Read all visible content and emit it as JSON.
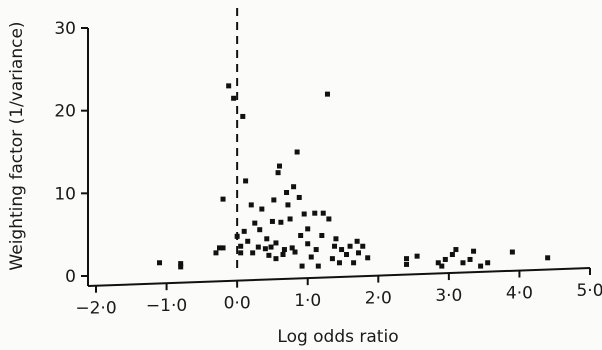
{
  "chart_data": {
    "type": "scatter",
    "xlabel": "Log odds ratio",
    "ylabel": "Weighting factor (1/variance)",
    "xlim": [
      -2.0,
      5.0
    ],
    "ylim": [
      0,
      30
    ],
    "x_ticks": [
      -2.0,
      -1.0,
      0.0,
      1.0,
      2.0,
      3.0,
      4.0,
      5.0
    ],
    "x_tick_labels": [
      "−2·0",
      "−1·0",
      "0·0",
      "1·0",
      "2·0",
      "3·0",
      "4·0",
      "5·0"
    ],
    "y_ticks": [
      0,
      10,
      20,
      30
    ],
    "y_tick_labels": [
      "0",
      "10",
      "20",
      "30"
    ],
    "reference_line": {
      "x": 0.0,
      "style": "dashed"
    },
    "grid": false,
    "marker_color": "#111111",
    "points": [
      {
        "x": -1.1,
        "y": 1.6
      },
      {
        "x": -0.8,
        "y": 1.5
      },
      {
        "x": -0.8,
        "y": 1.1
      },
      {
        "x": -0.3,
        "y": 2.8
      },
      {
        "x": -0.25,
        "y": 3.4
      },
      {
        "x": -0.2,
        "y": 3.4
      },
      {
        "x": -0.2,
        "y": 9.3
      },
      {
        "x": -0.12,
        "y": 23.0
      },
      {
        "x": -0.05,
        "y": 21.5
      },
      {
        "x": 0.0,
        "y": 4.8
      },
      {
        "x": 0.05,
        "y": 2.8
      },
      {
        "x": 0.05,
        "y": 3.6
      },
      {
        "x": 0.08,
        "y": 19.3
      },
      {
        "x": 0.1,
        "y": 5.4
      },
      {
        "x": 0.12,
        "y": 11.5
      },
      {
        "x": 0.15,
        "y": 4.2
      },
      {
        "x": 0.2,
        "y": 8.6
      },
      {
        "x": 0.22,
        "y": 2.8
      },
      {
        "x": 0.25,
        "y": 6.4
      },
      {
        "x": 0.3,
        "y": 3.5
      },
      {
        "x": 0.32,
        "y": 5.6
      },
      {
        "x": 0.35,
        "y": 8.1
      },
      {
        "x": 0.4,
        "y": 3.3
      },
      {
        "x": 0.42,
        "y": 4.5
      },
      {
        "x": 0.45,
        "y": 2.5
      },
      {
        "x": 0.48,
        "y": 3.5
      },
      {
        "x": 0.5,
        "y": 6.6
      },
      {
        "x": 0.52,
        "y": 9.2
      },
      {
        "x": 0.55,
        "y": 2.1
      },
      {
        "x": 0.55,
        "y": 4.0
      },
      {
        "x": 0.58,
        "y": 12.5
      },
      {
        "x": 0.6,
        "y": 13.3
      },
      {
        "x": 0.62,
        "y": 6.5
      },
      {
        "x": 0.65,
        "y": 2.6
      },
      {
        "x": 0.67,
        "y": 3.2
      },
      {
        "x": 0.7,
        "y": 10.1
      },
      {
        "x": 0.72,
        "y": 8.6
      },
      {
        "x": 0.75,
        "y": 6.9
      },
      {
        "x": 0.78,
        "y": 3.4
      },
      {
        "x": 0.8,
        "y": 10.8
      },
      {
        "x": 0.82,
        "y": 2.9
      },
      {
        "x": 0.85,
        "y": 15.0
      },
      {
        "x": 0.88,
        "y": 9.5
      },
      {
        "x": 0.9,
        "y": 4.9
      },
      {
        "x": 0.92,
        "y": 1.2
      },
      {
        "x": 0.95,
        "y": 7.5
      },
      {
        "x": 1.0,
        "y": 3.9
      },
      {
        "x": 1.0,
        "y": 5.7
      },
      {
        "x": 1.05,
        "y": 2.3
      },
      {
        "x": 1.1,
        "y": 7.6
      },
      {
        "x": 1.12,
        "y": 3.2
      },
      {
        "x": 1.15,
        "y": 1.2
      },
      {
        "x": 1.2,
        "y": 4.9
      },
      {
        "x": 1.22,
        "y": 7.6
      },
      {
        "x": 1.28,
        "y": 22.0
      },
      {
        "x": 1.3,
        "y": 6.9
      },
      {
        "x": 1.35,
        "y": 2.1
      },
      {
        "x": 1.38,
        "y": 3.6
      },
      {
        "x": 1.4,
        "y": 4.5
      },
      {
        "x": 1.45,
        "y": 1.6
      },
      {
        "x": 1.48,
        "y": 3.2
      },
      {
        "x": 1.55,
        "y": 2.6
      },
      {
        "x": 1.6,
        "y": 3.6
      },
      {
        "x": 1.65,
        "y": 1.6
      },
      {
        "x": 1.7,
        "y": 4.2
      },
      {
        "x": 1.72,
        "y": 2.8
      },
      {
        "x": 1.78,
        "y": 3.6
      },
      {
        "x": 1.85,
        "y": 2.2
      },
      {
        "x": 2.4,
        "y": 1.4
      },
      {
        "x": 2.4,
        "y": 2.1
      },
      {
        "x": 2.55,
        "y": 2.4
      },
      {
        "x": 2.85,
        "y": 1.6
      },
      {
        "x": 2.9,
        "y": 1.2
      },
      {
        "x": 2.95,
        "y": 2.0
      },
      {
        "x": 3.05,
        "y": 2.6
      },
      {
        "x": 3.1,
        "y": 3.2
      },
      {
        "x": 3.2,
        "y": 1.6
      },
      {
        "x": 3.3,
        "y": 2.0
      },
      {
        "x": 3.35,
        "y": 3.0
      },
      {
        "x": 3.45,
        "y": 1.2
      },
      {
        "x": 3.55,
        "y": 1.6
      },
      {
        "x": 3.9,
        "y": 2.9
      },
      {
        "x": 4.4,
        "y": 2.2
      }
    ]
  }
}
